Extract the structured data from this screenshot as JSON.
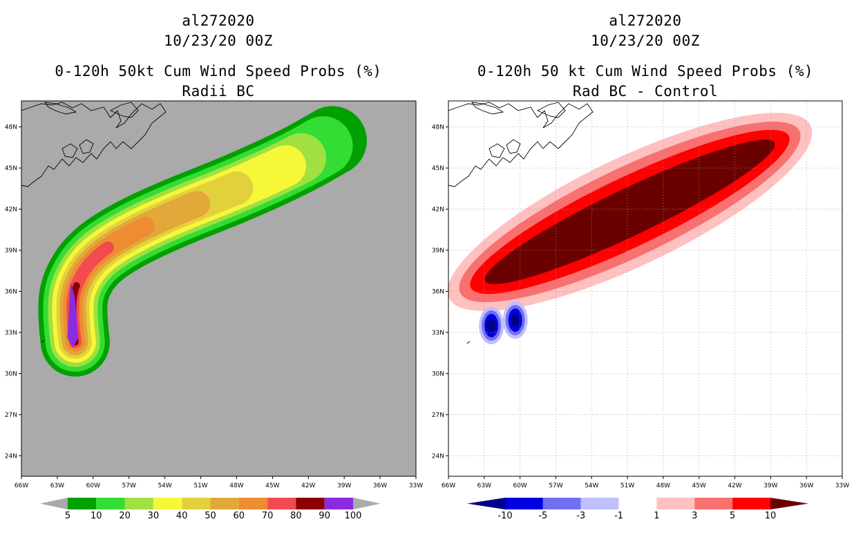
{
  "chart_data": [
    {
      "type": "heatmap",
      "panel": "left",
      "title_lines": [
        "al272020",
        "10/23/20 00Z",
        "0-120h 50kt Cum Wind Speed Probs (%)",
        "Radii BC"
      ],
      "x_ticks": [
        "66W",
        "63W",
        "60W",
        "57W",
        "54W",
        "51W",
        "48W",
        "45W",
        "42W",
        "39W",
        "36W",
        "33W"
      ],
      "y_ticks": [
        "48N",
        "45N",
        "42N",
        "39N",
        "36N",
        "33N",
        "30N",
        "27N",
        "24N"
      ],
      "x_range_deg_w": [
        66,
        33
      ],
      "y_range_deg_n": [
        22.5,
        49.9
      ],
      "colorbar": {
        "labels": [
          "5",
          "10",
          "20",
          "30",
          "40",
          "50",
          "60",
          "70",
          "80",
          "90",
          "100"
        ],
        "colors": [
          "#00a000",
          "#33dd33",
          "#a0e040",
          "#f7f73a",
          "#e3d13c",
          "#e2a83a",
          "#ee8c32",
          "#f24a4f",
          "#8c0000",
          "#8a2be2"
        ],
        "end_color": "#aaaaaa"
      },
      "background_color": "#aaaaaa",
      "contour_levels": [
        5,
        10,
        20,
        30,
        40,
        50,
        60,
        70,
        80,
        90
      ],
      "track_center": [
        [
          61.5,
          32.3
        ],
        [
          61.8,
          34.5
        ],
        [
          61.5,
          36.5
        ],
        [
          60.0,
          38.5
        ],
        [
          57.0,
          40.2
        ],
        [
          53.0,
          41.8
        ],
        [
          48.0,
          43.5
        ],
        [
          43.0,
          45.5
        ],
        [
          40.0,
          47.0
        ]
      ]
    },
    {
      "type": "heatmap",
      "panel": "right",
      "title_lines": [
        "al272020",
        "10/23/20 00Z",
        "0-120h 50 kt Cum Wind Speed Probs (%)",
        "Rad BC - Control"
      ],
      "x_ticks": [
        "66W",
        "63W",
        "60W",
        "57W",
        "54W",
        "51W",
        "48W",
        "45W",
        "42W",
        "39W",
        "36W",
        "33W"
      ],
      "y_ticks": [
        "48N",
        "45N",
        "42N",
        "39N",
        "36N",
        "33N",
        "30N",
        "27N",
        "24N"
      ],
      "x_range_deg_w": [
        66,
        33
      ],
      "y_range_deg_n": [
        22.5,
        49.9
      ],
      "colorbar": {
        "labels": [
          "-10",
          "-5",
          "-3",
          "-1",
          "1",
          "3",
          "5",
          "10"
        ],
        "colors": [
          "#0000e0",
          "#7070f0",
          "#c0c0ff",
          "#ffffff",
          "#ffc0c0",
          "#f87070",
          "#ff0000"
        ],
        "low_end_color": "#00008b",
        "high_end_color": "#6b0000"
      },
      "background_color": "#ffffff",
      "contour_levels": [
        1,
        3,
        5,
        10
      ],
      "negative_levels": [
        -1,
        -3,
        -5,
        -10
      ],
      "grid": true
    }
  ]
}
